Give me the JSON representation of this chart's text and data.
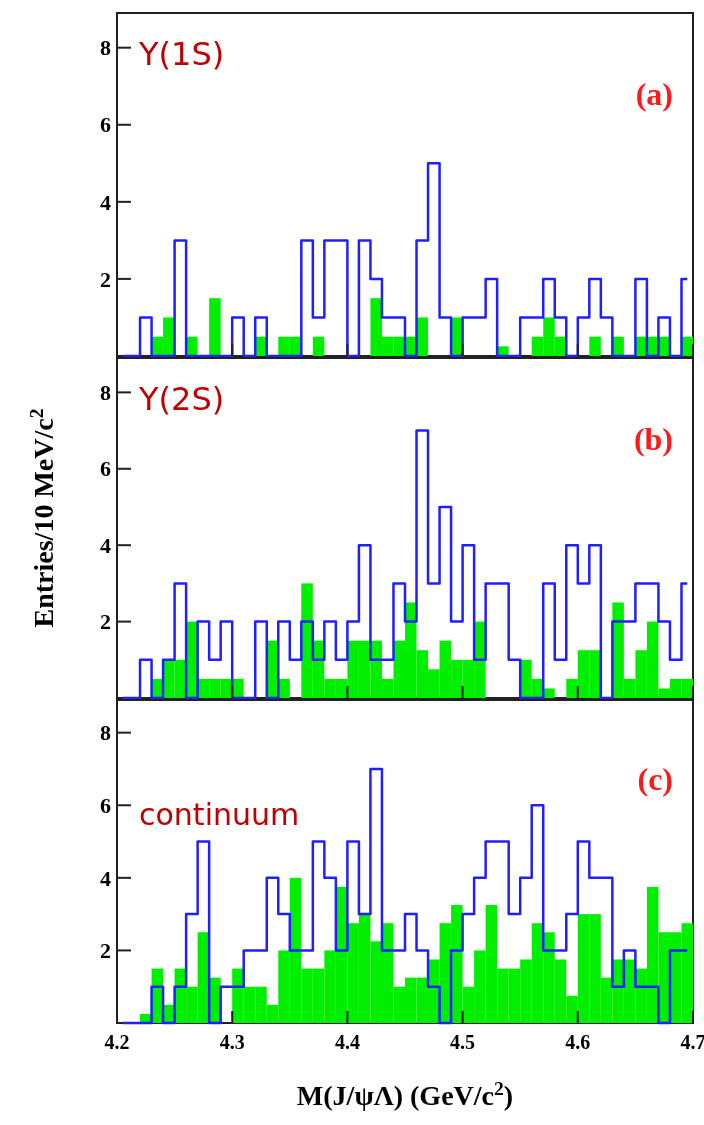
{
  "chart_data": [
    {
      "type": "histogram",
      "bins": [
        4.2,
        4.21,
        4.22,
        4.23,
        4.24,
        4.25,
        4.26,
        4.27,
        4.28,
        4.29,
        4.3,
        4.31,
        4.32,
        4.33,
        4.34,
        4.35,
        4.36,
        4.37,
        4.38,
        4.39,
        4.4,
        4.41,
        4.42,
        4.43,
        4.44,
        4.45,
        4.46,
        4.47,
        4.48,
        4.49,
        4.5,
        4.51,
        4.52,
        4.53,
        4.54,
        4.55,
        4.56,
        4.57,
        4.58,
        4.59,
        4.6,
        4.61,
        4.62,
        4.63,
        4.64,
        4.65,
        4.66,
        4.67,
        4.68,
        4.69,
        4.7
      ],
      "series": [
        {
          "type": "histogram",
          "color": "#00ee00",
          "values": [
            0,
            0,
            0,
            0.5,
            1,
            0,
            0.5,
            0,
            1.5,
            0,
            0,
            0,
            0.5,
            0,
            0.5,
            0.5,
            0,
            0.5,
            0,
            0,
            0,
            0,
            1.5,
            0.5,
            0.5,
            0.5,
            1,
            0,
            0,
            1,
            0,
            0,
            0,
            0.25,
            0,
            0,
            0.5,
            1,
            0.5,
            0,
            0,
            0.5,
            0,
            0.5,
            0,
            0.5,
            0.5,
            0.5,
            0,
            0.5
          ]
        },
        {
          "type": "step",
          "color": "#1f1fff",
          "x": [
            4.205,
            4.215,
            4.225,
            4.235,
            4.245,
            4.255,
            4.265,
            4.275,
            4.285,
            4.295,
            4.305,
            4.315,
            4.325,
            4.335,
            4.345,
            4.355,
            4.365,
            4.375,
            4.385,
            4.395,
            4.405,
            4.415,
            4.425,
            4.435,
            4.445,
            4.455,
            4.465,
            4.475,
            4.485,
            4.495,
            4.505,
            4.515,
            4.525,
            4.535,
            4.545,
            4.555,
            4.565,
            4.575,
            4.585,
            4.595,
            4.605,
            4.615,
            4.625,
            4.635,
            4.645,
            4.655,
            4.665,
            4.675,
            4.685,
            4.695
          ],
          "values": [
            0,
            0,
            1,
            0,
            0,
            3,
            0,
            0,
            0,
            0,
            1,
            0,
            1,
            0,
            0,
            0,
            3,
            1,
            3,
            3,
            0,
            3,
            2,
            1,
            1,
            0,
            3,
            5,
            1,
            0,
            1,
            1,
            2,
            0,
            0,
            1,
            1,
            2,
            1,
            0,
            1,
            2,
            1,
            0,
            0,
            2,
            0,
            1,
            0,
            2
          ]
        }
      ],
      "xlim": [
        4.2,
        4.7
      ],
      "xticks": [
        4.2,
        4.3,
        4.4,
        4.5,
        4.6,
        4.7
      ],
      "ylim": [
        0,
        8.9
      ],
      "yticks": [
        2,
        4,
        6,
        8
      ],
      "tick_labels": "y",
      "annotations": [
        "Υ(1S)",
        "(a)"
      ]
    },
    {
      "type": "histogram",
      "bins": [
        4.2,
        4.21,
        4.22,
        4.23,
        4.24,
        4.25,
        4.26,
        4.27,
        4.28,
        4.29,
        4.3,
        4.31,
        4.32,
        4.33,
        4.34,
        4.35,
        4.36,
        4.37,
        4.38,
        4.39,
        4.4,
        4.41,
        4.42,
        4.43,
        4.44,
        4.45,
        4.46,
        4.47,
        4.48,
        4.49,
        4.5,
        4.51,
        4.52,
        4.53,
        4.54,
        4.55,
        4.56,
        4.57,
        4.58,
        4.59,
        4.6,
        4.61,
        4.62,
        4.63,
        4.64,
        4.65,
        4.66,
        4.67,
        4.68,
        4.69,
        4.7
      ],
      "series": [
        {
          "type": "histogram",
          "color": "#00ee00",
          "values": [
            0,
            0,
            0,
            0.5,
            1,
            1,
            2,
            0.5,
            0.5,
            0.5,
            0.5,
            0,
            0,
            1.5,
            0.5,
            0,
            3,
            1.5,
            0.5,
            0.5,
            1.5,
            1.5,
            1.5,
            0.5,
            1.5,
            2.5,
            1.25,
            0.75,
            1.5,
            1,
            1,
            2,
            0,
            0,
            0,
            1,
            0.5,
            0.25,
            0,
            0.5,
            1.25,
            1.25,
            0,
            2.5,
            0.5,
            1.25,
            2,
            0.25,
            0.5,
            0.5
          ]
        },
        {
          "type": "step",
          "color": "#1f1fff",
          "x": [
            4.205,
            4.215,
            4.225,
            4.235,
            4.245,
            4.255,
            4.265,
            4.275,
            4.285,
            4.295,
            4.305,
            4.315,
            4.325,
            4.335,
            4.345,
            4.355,
            4.365,
            4.375,
            4.385,
            4.395,
            4.405,
            4.415,
            4.425,
            4.435,
            4.445,
            4.455,
            4.465,
            4.475,
            4.485,
            4.495,
            4.505,
            4.515,
            4.525,
            4.535,
            4.545,
            4.555,
            4.565,
            4.575,
            4.585,
            4.595,
            4.605,
            4.615,
            4.625,
            4.635,
            4.645,
            4.655,
            4.665,
            4.675,
            4.685,
            4.695
          ],
          "values": [
            0,
            0,
            1,
            0,
            1,
            3,
            0,
            2,
            1,
            2,
            0,
            0,
            2,
            0,
            2,
            1,
            2,
            1,
            2,
            1,
            2,
            4,
            1,
            1,
            3,
            2,
            7,
            3,
            5,
            2,
            4,
            1,
            3,
            3,
            1,
            0,
            0,
            3,
            1,
            4,
            3,
            4,
            0,
            2,
            2,
            3,
            3,
            2,
            1,
            3
          ]
        }
      ],
      "xlim": [
        4.2,
        4.7
      ],
      "xticks": [
        4.2,
        4.3,
        4.4,
        4.5,
        4.6,
        4.7
      ],
      "ylim": [
        0,
        8.9
      ],
      "yticks": [
        2,
        4,
        6,
        8
      ],
      "tick_labels": "y",
      "ylabel": "Entries/10 MeV/c$^{2}$",
      "annotations": [
        "Υ(2S)",
        "(b)"
      ]
    },
    {
      "type": "histogram",
      "bins": [
        4.2,
        4.21,
        4.22,
        4.23,
        4.24,
        4.25,
        4.26,
        4.27,
        4.28,
        4.29,
        4.3,
        4.31,
        4.32,
        4.33,
        4.34,
        4.35,
        4.36,
        4.37,
        4.38,
        4.39,
        4.4,
        4.41,
        4.42,
        4.43,
        4.44,
        4.45,
        4.46,
        4.47,
        4.48,
        4.49,
        4.5,
        4.51,
        4.52,
        4.53,
        4.54,
        4.55,
        4.56,
        4.57,
        4.58,
        4.59,
        4.6,
        4.61,
        4.62,
        4.63,
        4.64,
        4.65,
        4.66,
        4.67,
        4.68,
        4.69,
        4.7
      ],
      "series": [
        {
          "type": "histogram",
          "color": "#00ee00",
          "values": [
            0,
            0,
            0.25,
            1.5,
            0.5,
            1.5,
            1,
            2.5,
            1.25,
            0,
            1.5,
            1,
            1,
            0.5,
            2,
            4,
            1.5,
            1.5,
            2,
            3.75,
            2.75,
            3,
            2.25,
            2.75,
            1,
            1.25,
            1.25,
            1.75,
            2.75,
            3.25,
            1,
            2,
            3.25,
            1.5,
            1.5,
            1.75,
            2.75,
            2.5,
            1.75,
            0.75,
            3,
            3,
            1.25,
            1.75,
            1.75,
            1.5,
            3.75,
            2.5,
            2.5,
            2.75
          ]
        },
        {
          "type": "step",
          "color": "#1f1fff",
          "x": [
            4.205,
            4.215,
            4.225,
            4.235,
            4.245,
            4.255,
            4.265,
            4.275,
            4.285,
            4.295,
            4.305,
            4.315,
            4.325,
            4.335,
            4.345,
            4.355,
            4.365,
            4.375,
            4.385,
            4.395,
            4.405,
            4.415,
            4.425,
            4.435,
            4.445,
            4.455,
            4.465,
            4.475,
            4.485,
            4.495,
            4.505,
            4.515,
            4.525,
            4.535,
            4.545,
            4.555,
            4.565,
            4.575,
            4.585,
            4.595,
            4.605,
            4.615,
            4.625,
            4.635,
            4.645,
            4.655,
            4.665,
            4.675,
            4.685,
            4.695
          ],
          "values": [
            0,
            0,
            0,
            1,
            0,
            1,
            3,
            5,
            0,
            1,
            1,
            2,
            2,
            4,
            3,
            2,
            2,
            5,
            4,
            2,
            5,
            3,
            7,
            2,
            2,
            3,
            2,
            1,
            0,
            2,
            3,
            4,
            5,
            5,
            3,
            4,
            6,
            2,
            2,
            3,
            5,
            4,
            4,
            1,
            2,
            1,
            1,
            0,
            2,
            2
          ]
        }
      ],
      "xlim": [
        4.2,
        4.7
      ],
      "xticks": [
        4.2,
        4.3,
        4.4,
        4.5,
        4.6,
        4.7
      ],
      "ylim": [
        0,
        8.9
      ],
      "yticks": [
        2,
        4,
        6,
        8
      ],
      "xlabel": "M(J/ψΛ) (GeV/c$^{2}$)",
      "annotations": [
        "continuum",
        "(c)"
      ]
    }
  ]
}
